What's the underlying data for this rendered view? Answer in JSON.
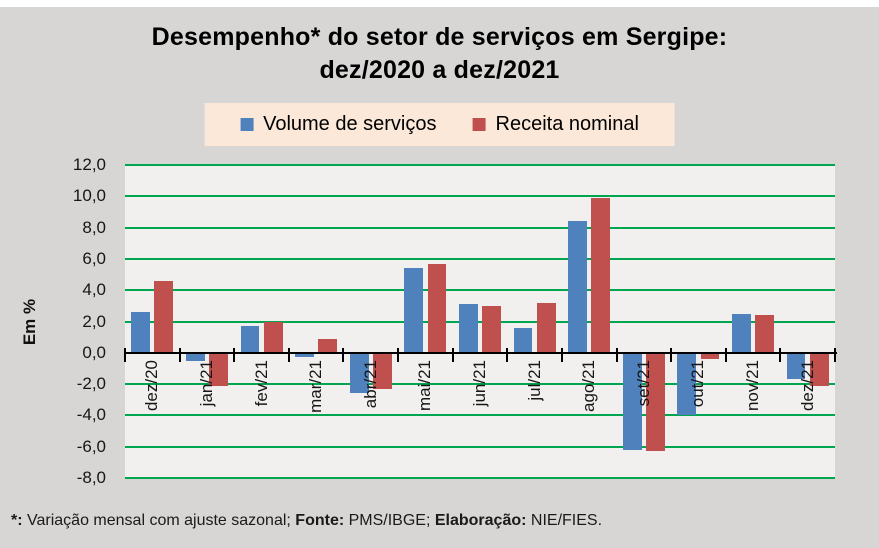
{
  "page": {
    "background_color": "#D7D6D5",
    "plot_background_color": "#F1F0EF",
    "top_strip_color": "#FFFFFF"
  },
  "chart_data": {
    "type": "bar",
    "title": "Desempenho* do setor de serviços em Sergipe: dez/2020 a dez/2021",
    "title_lines": [
      "Desempenho* do setor de serviços em Sergipe:",
      "dez/2020 a dez/2021"
    ],
    "ylabel": "Em %",
    "ylim": [
      -8,
      12
    ],
    "ytick_step": 2,
    "grid": true,
    "gridline_color": "#00A550",
    "axis_color": "#000000",
    "legend_position": "top",
    "categories": [
      "dez/20",
      "jan/21",
      "fev/21",
      "mar/21",
      "abr/21",
      "mai/21",
      "jun/21",
      "jul/21",
      "ago/21",
      "set/21",
      "out/21",
      "nov/21",
      "dez/21"
    ],
    "series": [
      {
        "name": "Volume de serviços",
        "color": "#4F81BD",
        "values": [
          2.6,
          -0.5,
          1.7,
          -0.3,
          -2.6,
          5.4,
          3.1,
          1.6,
          8.4,
          -6.2,
          -4.0,
          2.5,
          -1.7
        ]
      },
      {
        "name": "Receita nominal",
        "color": "#C0504D",
        "values": [
          4.6,
          -2.1,
          2.0,
          0.9,
          -2.3,
          5.7,
          3.0,
          3.2,
          9.9,
          -6.3,
          -0.4,
          2.4,
          -2.1
        ]
      }
    ],
    "yticks": [
      {
        "value": 12,
        "label": "12,0"
      },
      {
        "value": 10,
        "label": "10,0"
      },
      {
        "value": 8,
        "label": "8,0"
      },
      {
        "value": 6,
        "label": "6,0"
      },
      {
        "value": 4,
        "label": "4,0"
      },
      {
        "value": 2,
        "label": "2,0"
      },
      {
        "value": 0,
        "label": "0,0"
      },
      {
        "value": -2,
        "label": "-2,0"
      },
      {
        "value": -4,
        "label": "-4,0"
      },
      {
        "value": -6,
        "label": "-6,0"
      },
      {
        "value": -8,
        "label": "-8,0"
      }
    ]
  },
  "legend": {
    "background_color": "#FBE8D8"
  },
  "footer": {
    "segments": [
      {
        "text": "*:",
        "bold": true
      },
      {
        "text": " Variação mensal com ajuste sazonal; ",
        "bold": false
      },
      {
        "text": "Fonte:",
        "bold": true
      },
      {
        "text": " PMS/IBGE; ",
        "bold": false
      },
      {
        "text": "Elaboração:",
        "bold": true
      },
      {
        "text": " NIE/FIES.",
        "bold": false
      }
    ]
  }
}
